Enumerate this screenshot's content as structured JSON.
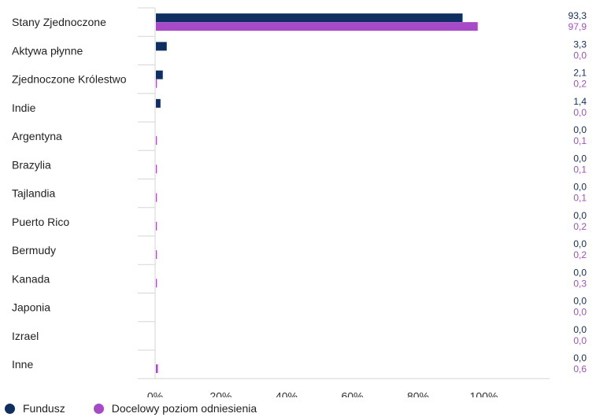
{
  "chart_data": {
    "type": "bar",
    "orientation": "horizontal",
    "categories": [
      "Stany Zjednoczone",
      "Aktywa płynne",
      "Zjednoczone Królestwo",
      "Indie",
      "Argentyna",
      "Brazylia",
      "Tajlandia",
      "Puerto Rico",
      "Bermudy",
      "Kanada",
      "Japonia",
      "Izrael",
      "Inne"
    ],
    "series": [
      {
        "name": "Fundusz",
        "color": "#0f2f63",
        "values": [
          93.3,
          3.3,
          2.1,
          1.4,
          0.0,
          0.0,
          0.0,
          0.0,
          0.0,
          0.0,
          0.0,
          0.0,
          0.0
        ],
        "value_labels": [
          "93,3",
          "3,3",
          "2,1",
          "1,4",
          "0,0",
          "0,0",
          "0,0",
          "0,0",
          "0,0",
          "0,0",
          "0,0",
          "0,0",
          "0,0"
        ]
      },
      {
        "name": "Docelowy poziom odniesienia",
        "color": "#a74ac7",
        "values": [
          97.9,
          0.0,
          0.2,
          0.0,
          0.1,
          0.1,
          0.1,
          0.2,
          0.2,
          0.3,
          0.0,
          0.0,
          0.6
        ],
        "value_labels": [
          "97,9",
          "0,0",
          "0,2",
          "0,0",
          "0,1",
          "0,1",
          "0,1",
          "0,2",
          "0,2",
          "0,3",
          "0,0",
          "0,0",
          "0,6"
        ]
      }
    ],
    "xlim": [
      0,
      120
    ],
    "x_ticks": [
      0,
      20,
      40,
      60,
      80,
      100
    ],
    "x_tick_labels": [
      "0%",
      "20%",
      "40%",
      "60%",
      "80%",
      "100%"
    ],
    "legend_position": "bottom-left",
    "grid": false
  }
}
